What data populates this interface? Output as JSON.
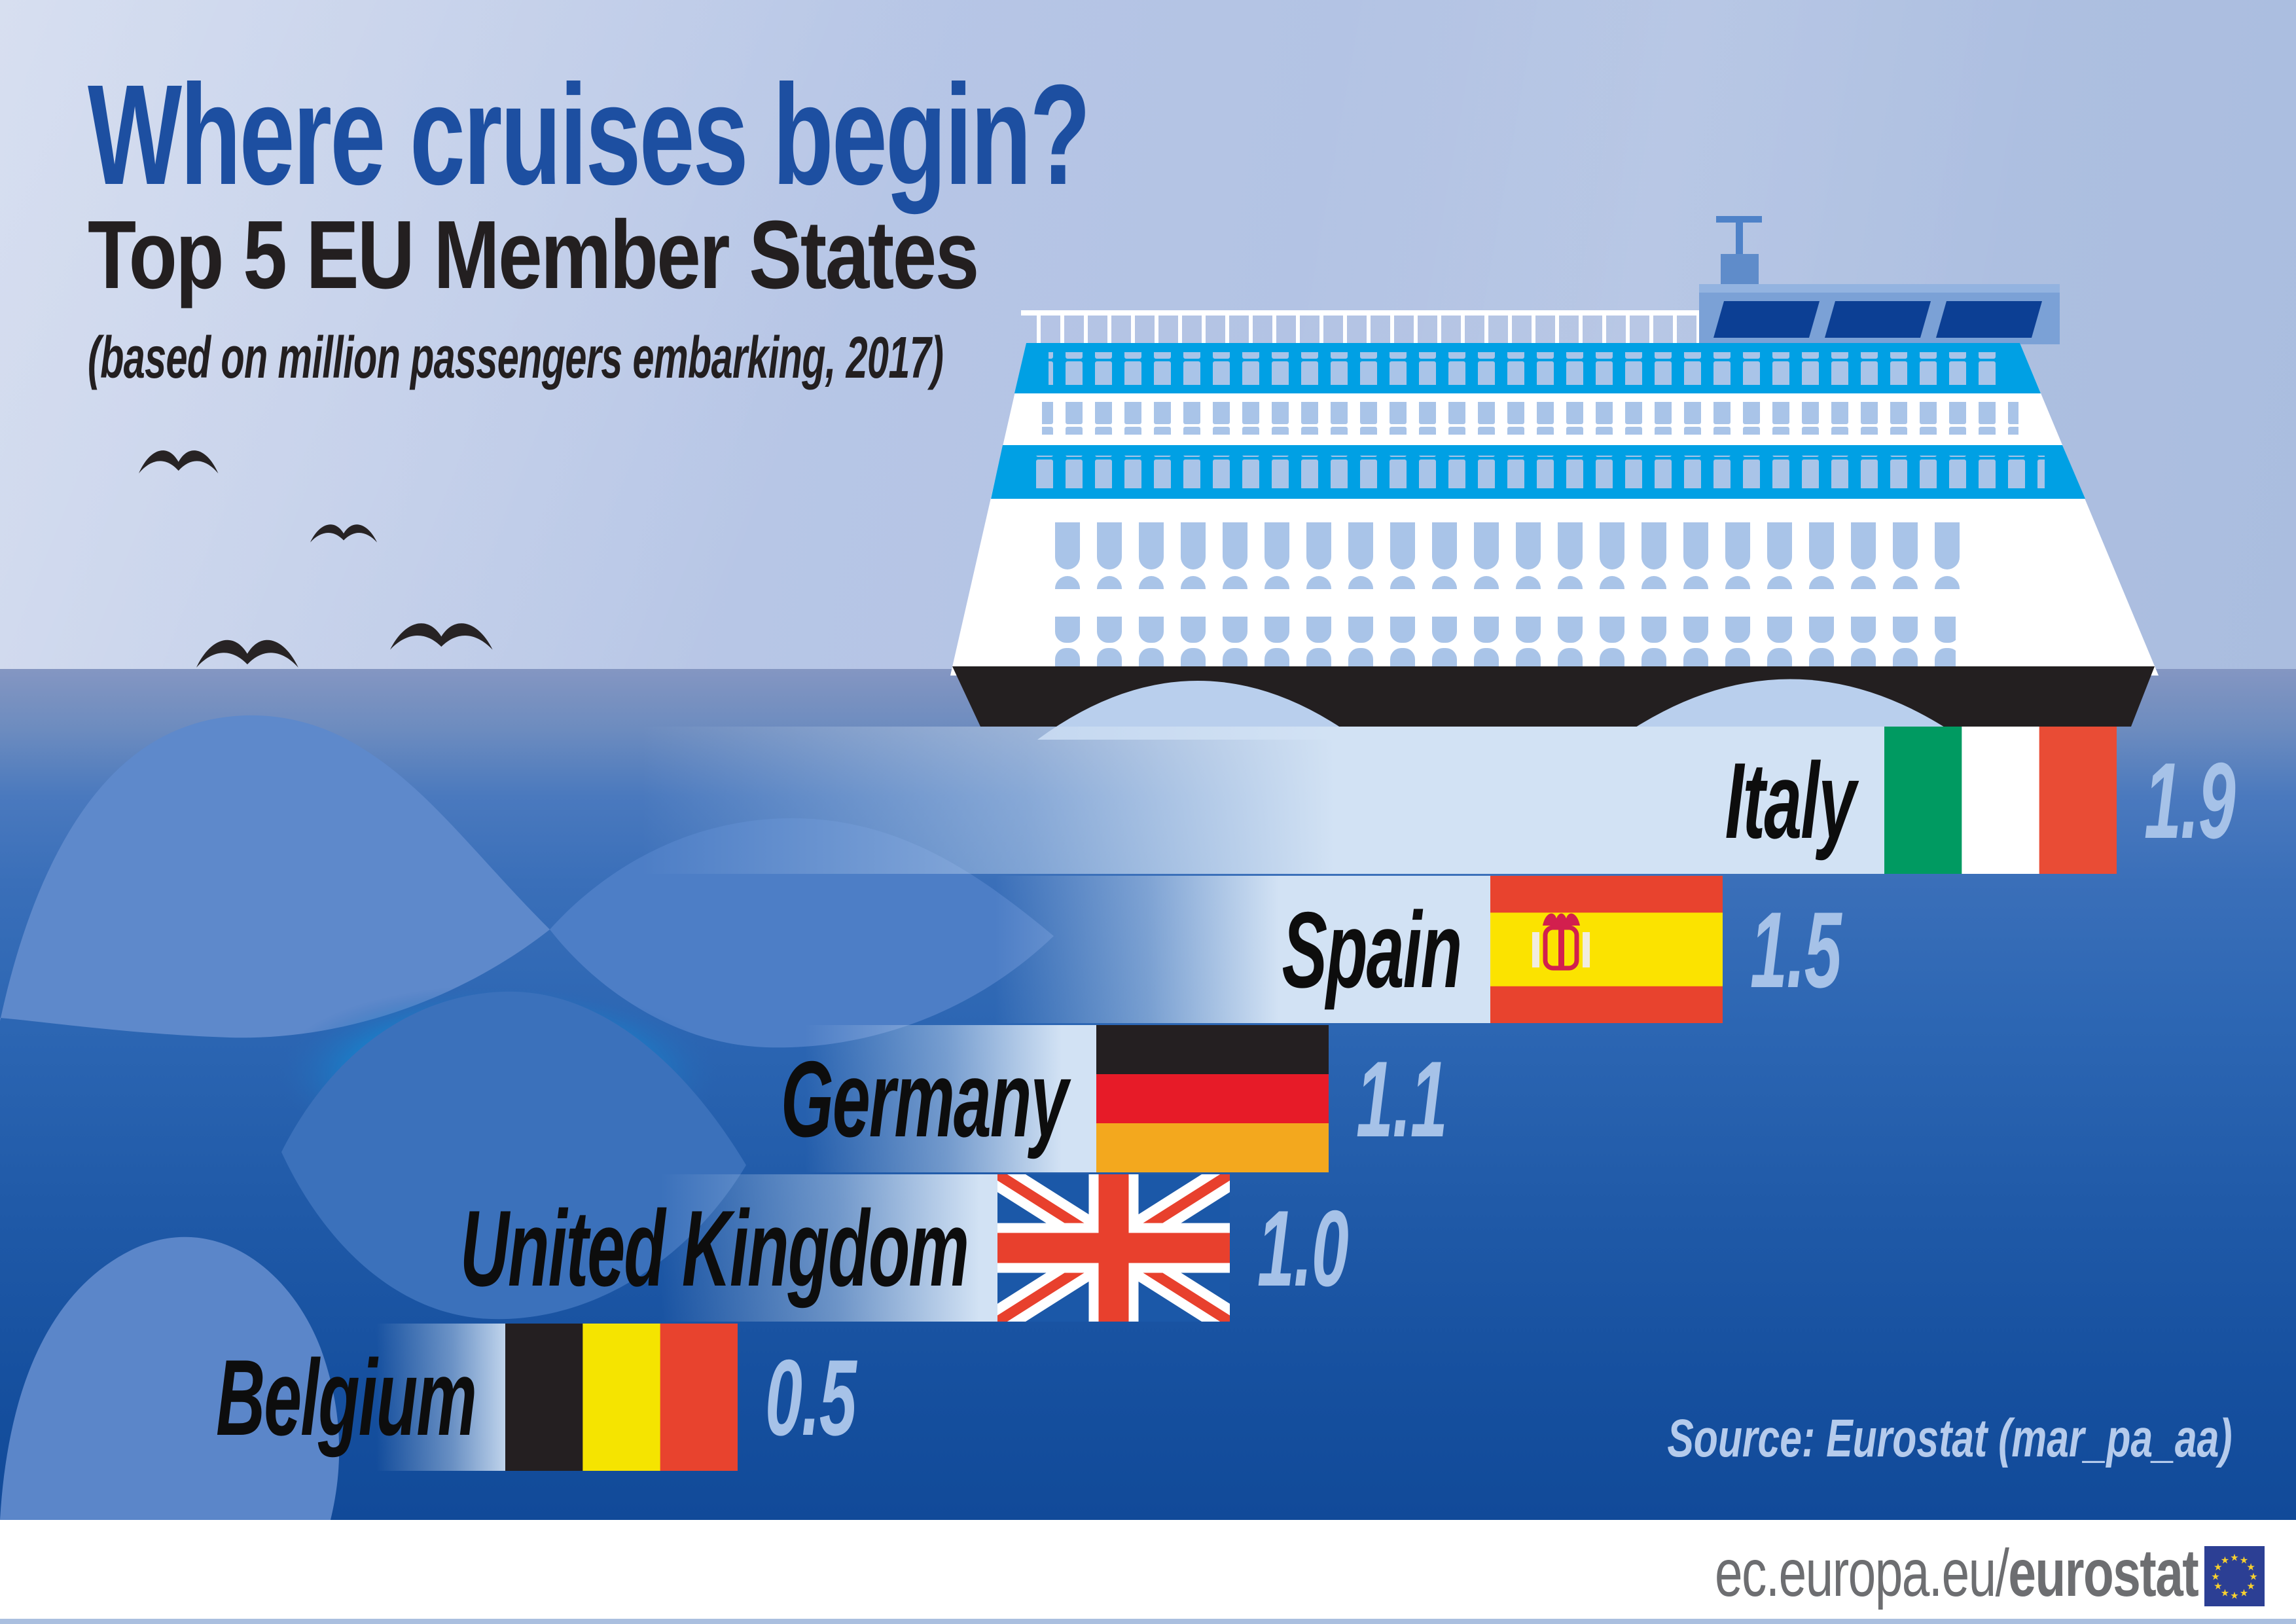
{
  "title": "Where cruises begin?",
  "subtitle": "Top 5 EU Member States",
  "note": "(based on million passengers embarking, 2017)",
  "source": "Source: Eurostat (mar_pa_aa)",
  "footer": {
    "url_prefix": "ec.europa.eu/",
    "url_bold": "eurostat"
  },
  "chart_data": {
    "type": "bar",
    "orientation": "horizontal",
    "title": "Where cruises begin?",
    "subtitle": "Top 5 EU Member States",
    "note": "(based on million passengers embarking, 2017)",
    "unit": "million passengers embarking",
    "year": 2017,
    "categories": [
      "Italy",
      "Spain",
      "Germany",
      "United Kingdom",
      "Belgium"
    ],
    "values": [
      1.9,
      1.5,
      1.1,
      1.0,
      0.5
    ],
    "source": "Source: Eurostat (mar_pa_aa)",
    "legend": false,
    "grid": false,
    "rows": [
      {
        "key": "italy",
        "country": "Italy",
        "value": "1.9",
        "flag": "it"
      },
      {
        "key": "spain",
        "country": "Spain",
        "value": "1.5",
        "flag": "es"
      },
      {
        "key": "germany",
        "country": "Germany",
        "value": "1.1",
        "flag": "de"
      },
      {
        "key": "united-kingdom",
        "country": "United Kingdom",
        "value": "1.0",
        "flag": "uk"
      },
      {
        "key": "belgium",
        "country": "Belgium",
        "value": "0.5",
        "flag": "be"
      }
    ]
  },
  "flags": {
    "it": {
      "type": "vertical",
      "stripes": [
        "#009a61",
        "#ffffff",
        "#e94c35"
      ]
    },
    "es": {
      "type": "spain",
      "stripes": [
        "#e8432e",
        "#fbe300",
        "#e8432e"
      ]
    },
    "de": {
      "type": "horizontal",
      "stripes": [
        "#241f21",
        "#e71b28",
        "#f3a81e"
      ]
    },
    "uk": {
      "type": "union-jack",
      "field": "#1b58a8",
      "cross": "#e8402d",
      "white": "#ffffff"
    },
    "be": {
      "type": "vertical",
      "stripes": [
        "#241f21",
        "#f5e400",
        "#e8432e"
      ]
    }
  },
  "colors": {
    "title_blue": "#1d4fa1",
    "text_black": "#231f20",
    "value_text": "#a6c2e8",
    "bar_light": "#d2e2f4",
    "sky": "#b7c6e6",
    "sea_deep": "#114a99",
    "ship_cyan": "#00a0e4",
    "ship_window": "#a9c4e8",
    "footer_text": "#6d6e71",
    "eu_flag_blue": "#2c3f94",
    "eu_star_yellow": "#f8d12e"
  },
  "icons": [
    "seagull-icon",
    "cruise-ship-icon",
    "flag-italy-icon",
    "flag-spain-icon",
    "flag-germany-icon",
    "flag-united-kingdom-icon",
    "flag-belgium-icon",
    "eu-flag-icon"
  ]
}
